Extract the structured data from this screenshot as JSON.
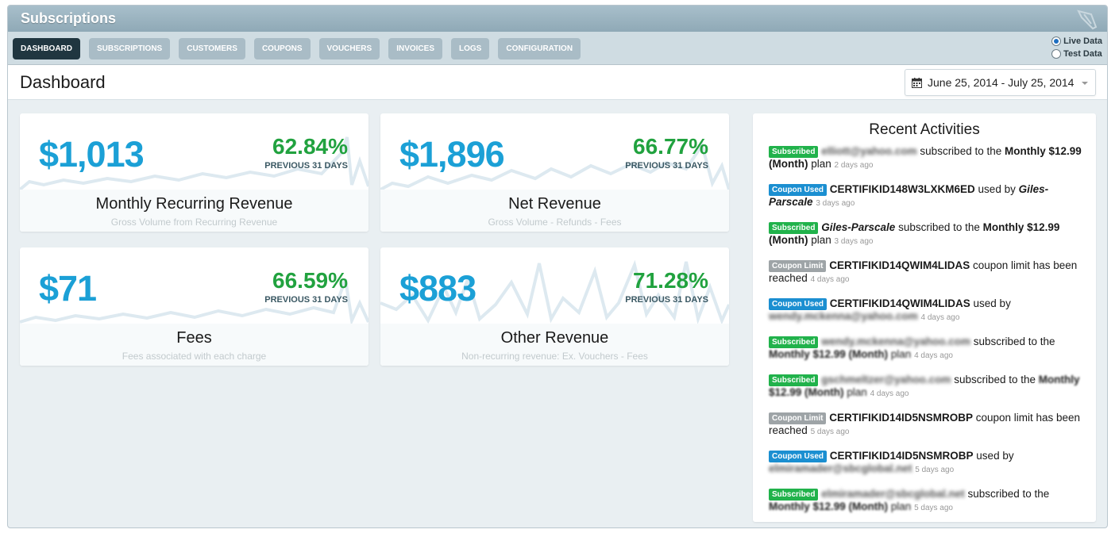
{
  "app": {
    "title": "Subscriptions"
  },
  "nav": {
    "tabs": [
      "DASHBOARD",
      "SUBSCRIPTIONS",
      "CUSTOMERS",
      "COUPONS",
      "VOUCHERS",
      "INVOICES",
      "LOGS",
      "CONFIGURATION"
    ],
    "active": "DASHBOARD"
  },
  "mode": {
    "live": "Live Data",
    "test": "Test Data",
    "selected": "Live Data"
  },
  "page": {
    "title": "Dashboard",
    "date_range": "June 25, 2014 - July 25, 2014"
  },
  "cards": [
    {
      "amount": "$1,013",
      "pct": "62.84%",
      "period": "PREVIOUS 31 DAYS",
      "label": "Monthly Recurring Revenue",
      "sub": "Gross Volume from Recurring Revenue"
    },
    {
      "amount": "$1,896",
      "pct": "66.77%",
      "period": "PREVIOUS 31 DAYS",
      "label": "Net Revenue",
      "sub": "Gross Volume - Refunds - Fees"
    },
    {
      "amount": "$71",
      "pct": "66.59%",
      "period": "PREVIOUS 31 DAYS",
      "label": "Fees",
      "sub": "Fees associated with each charge"
    },
    {
      "amount": "$883",
      "pct": "71.28%",
      "period": "PREVIOUS 31 DAYS",
      "label": "Other Revenue",
      "sub": "Non-recurring revenue: Ex. Vouchers - Fees"
    }
  ],
  "activities": {
    "title": "Recent Activities",
    "badges": {
      "subscribed": "Subscribed",
      "used": "Coupon Used",
      "limit": "Coupon Limit"
    },
    "items": [
      {
        "t1": "elliott@yahoo.com",
        "t2": " subscribed to the ",
        "t3": "Monthly $12.99 (Month)",
        "t4": " plan",
        "ago": "2 days ago"
      },
      {
        "t1": "CERTIFIKID148W3LXKM6ED",
        "t2": " used by ",
        "t3": "Giles-Parscale",
        "ago": "3 days ago"
      },
      {
        "t1": "Giles-Parscale",
        "t2": " subscribed to the ",
        "t3": "Monthly $12.99 (Month)",
        "t4": " plan",
        "ago": "3 days ago"
      },
      {
        "t1": "CERTIFIKID14QWIM4LIDAS",
        "t2": " coupon limit has been reached",
        "ago": "4 days ago"
      },
      {
        "t1": "CERTIFIKID14QWIM4LIDAS",
        "t2": " used by ",
        "t3": "wendy.mckenna@yahoo.com",
        "ago": "4 days ago"
      },
      {
        "t1": "wendy.mckenna@yahoo.com",
        "t2": " subscribed to the ",
        "t3": "Monthly $12.99 (Month)",
        "t4": " plan",
        "ago": "4 days ago"
      },
      {
        "t1": "gschmeltzer@yahoo.com",
        "t2": " subscribed to the ",
        "t3": "Monthly $12.99 (Month)",
        "t4": " plan",
        "ago": "4 days ago"
      },
      {
        "t1": "CERTIFIKID14ID5NSMROBP",
        "t2": " coupon limit has been reached",
        "ago": "5 days ago"
      },
      {
        "t1": "CERTIFIKID14ID5NSMROBP",
        "t2": " used by ",
        "t3": "elmiramader@sbcglobal.net",
        "ago": "5 days ago"
      },
      {
        "t1": "elmiramader@sbcglobal.net",
        "t2": " subscribed to the ",
        "t3": "Monthly $12.99 (Month)",
        "t4": " plan",
        "ago": "5 days ago"
      }
    ]
  },
  "colors": {
    "accent": "#1ba0d6",
    "positive": "#21a23f",
    "tab_active": "#203640",
    "tab": "#a9bcc6"
  }
}
